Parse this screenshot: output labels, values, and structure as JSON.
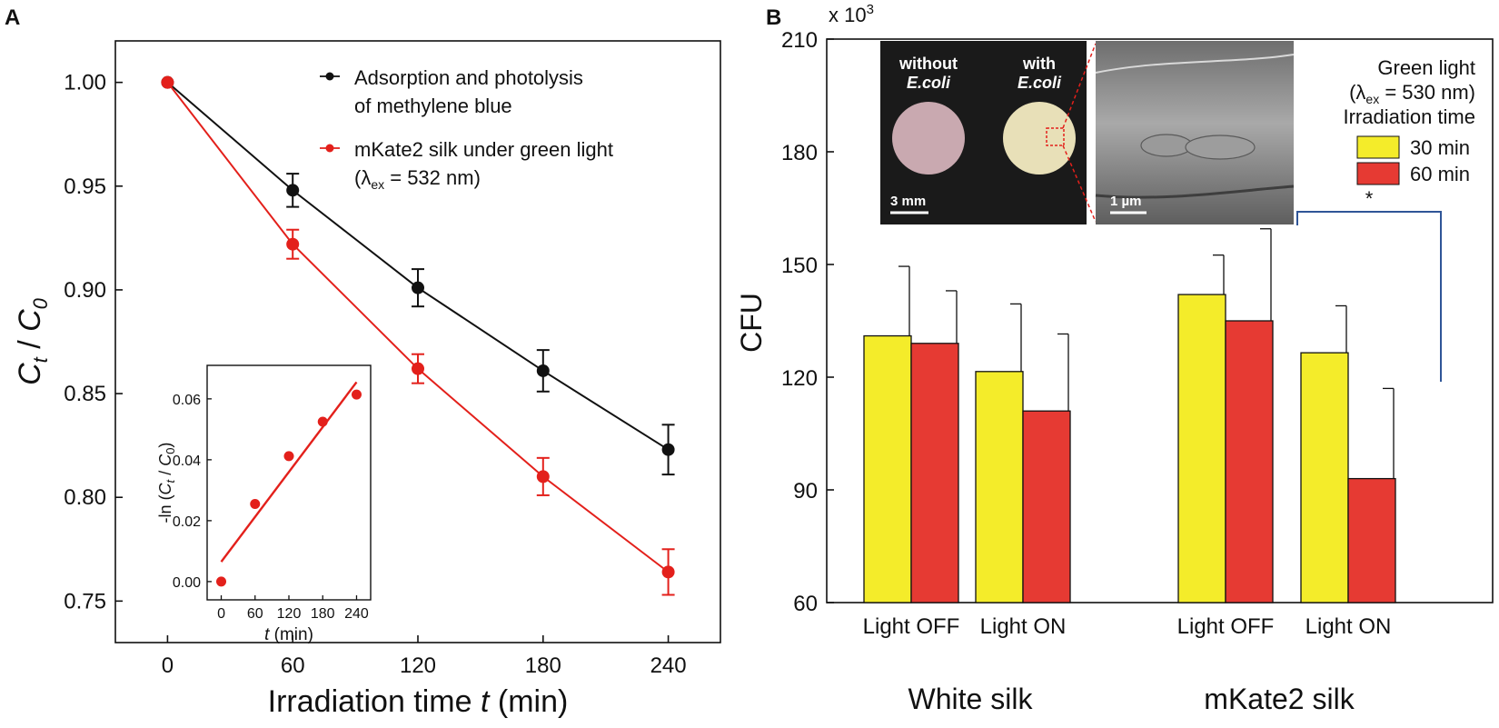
{
  "colors": {
    "black_series": "#111111",
    "red_series": "#e3201b",
    "bar_yellow": "#f4ec2a",
    "bar_red": "#e63a33",
    "bracket_blue": "#2f5597",
    "photo_bg": "#1a1a1a",
    "disk_without": "#c9a9b0",
    "disk_with": "#e8e0b8",
    "sem_gray": "#8a8a8a"
  },
  "chart_data": [
    {
      "panel_label": "A",
      "type": "line",
      "xlabel_prefix": "Irradiation time ",
      "xlabel_var": "t",
      "xlabel_suffix": " (min)",
      "ylabel_main": "C",
      "ylabel_sub1": "t",
      "ylabel_slash": " / ",
      "ylabel_sub2": "0",
      "xlim": [
        -25,
        265
      ],
      "ylim": [
        0.73,
        1.02
      ],
      "xticks": [
        "0",
        "60",
        "120",
        "180",
        "240"
      ],
      "yticks": [
        "0.75",
        "0.80",
        "0.85",
        "0.90",
        "0.95",
        "1.00"
      ],
      "series": [
        {
          "name": "Adsorption and photolysis of methylene blue",
          "legend_line1": "Adsorption and photolysis",
          "legend_line2": "of methylene blue",
          "color": "#111111",
          "x": [
            0,
            60,
            120,
            180,
            240
          ],
          "y": [
            1.0,
            0.948,
            0.901,
            0.861,
            0.823
          ],
          "err": [
            0.0,
            0.008,
            0.009,
            0.01,
            0.012
          ]
        },
        {
          "name": "mKate2 silk under green light (λex = 532 nm)",
          "legend_line1": "mKate2 silk under green light",
          "legend_line2_pre": "(λ",
          "legend_line2_sub": "ex",
          "legend_line2_post": " = 532 nm)",
          "color": "#e3201b",
          "x": [
            0,
            60,
            120,
            180,
            240
          ],
          "y": [
            1.0,
            0.922,
            0.862,
            0.81,
            0.764
          ],
          "err": [
            0.0,
            0.007,
            0.007,
            0.009,
            0.011
          ]
        }
      ],
      "inset": {
        "type": "scatter",
        "xlabel_var": "t",
        "xlabel_suffix": " (min)",
        "ylabel": "-ln (Ct / C0)",
        "ylabel_pre": "-ln (",
        "ylabel_c1": "C",
        "ylabel_s1": "t",
        "ylabel_mid": " / ",
        "ylabel_c2": "C",
        "ylabel_s2": "0",
        "ylabel_post": ")",
        "xlim": [
          -25,
          265
        ],
        "ylim": [
          -0.006,
          0.071
        ],
        "xticks": [
          "0",
          "60",
          "120",
          "180",
          "240"
        ],
        "yticks": [
          "0.00",
          "0.02",
          "0.04",
          "0.06"
        ],
        "x": [
          0,
          60,
          120,
          180,
          240
        ],
        "y": [
          0.0,
          0.0255,
          0.0412,
          0.0525,
          0.0614
        ],
        "fit": [
          [
            0,
            0.0065
          ],
          [
            240,
            0.0655
          ]
        ]
      }
    },
    {
      "panel_label": "B",
      "type": "bar",
      "ylabel": "CFU",
      "ylim": [
        60,
        210
      ],
      "yticks": [
        "60",
        "90",
        "120",
        "150",
        "180",
        "210"
      ],
      "y_multiplier_base": "x 10",
      "y_multiplier_exp": "3",
      "groups": [
        "White silk",
        "mKate2 silk"
      ],
      "categories": [
        "Light OFF",
        "Light ON",
        "Light OFF",
        "Light ON"
      ],
      "series": [
        {
          "name": "30 min",
          "color": "#f4ec2a",
          "values": [
            131,
            121.5,
            142,
            126.5
          ],
          "err": [
            18.5,
            18,
            10.5,
            12.5
          ]
        },
        {
          "name": "60 min",
          "color": "#e63a33",
          "values": [
            129,
            111,
            135,
            93
          ],
          "err": [
            14,
            20.5,
            24.5,
            24
          ]
        }
      ],
      "legend_title_line1": "Green light",
      "legend_title_line2_pre": "(λ",
      "legend_title_line2_sub": "ex",
      "legend_title_line2_post": " = 530 nm)",
      "legend_title_line3": "Irradiation time",
      "significance": "*",
      "inset_photo": {
        "label_without_1": "without",
        "label_without_2": "E.coli",
        "label_with_1": "with",
        "label_with_2": "E.coli",
        "scale_photo": "3 mm",
        "scale_sem": "1 µm"
      }
    }
  ]
}
